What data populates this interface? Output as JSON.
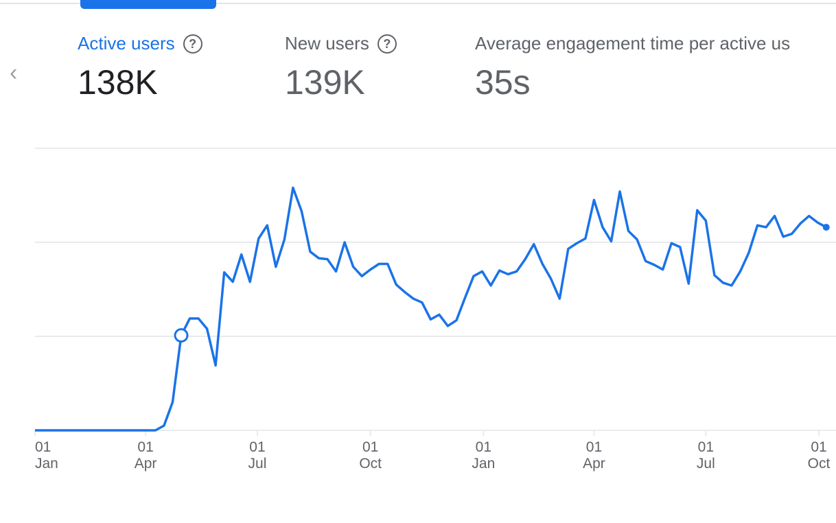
{
  "tabs": [
    {
      "label": "Active users",
      "value": "138K",
      "selected": true,
      "help_icon": "help-circle-icon"
    },
    {
      "label": "New users",
      "value": "139K",
      "selected": false,
      "help_icon": "help-circle-icon"
    },
    {
      "label": "Average engagement time per active us",
      "value": "35s",
      "selected": false
    }
  ],
  "nav": {
    "prev_icon": "chevron-left-icon"
  },
  "colors": {
    "accent": "#1a73e8",
    "line": "#1a73e8",
    "grid": "#e8eaed",
    "text_muted": "#5f6368"
  },
  "chart_data": {
    "type": "line",
    "title": "",
    "xlabel": "",
    "ylabel": "",
    "frequency": "weekly",
    "start": "01 Jan",
    "x_ticks": [
      {
        "day": "01",
        "month": "Jan"
      },
      {
        "day": "01",
        "month": "Apr"
      },
      {
        "day": "01",
        "month": "Jul"
      },
      {
        "day": "01",
        "month": "Oct"
      },
      {
        "day": "01",
        "month": "Jan"
      },
      {
        "day": "01",
        "month": "Apr"
      },
      {
        "day": "01",
        "month": "Jul"
      },
      {
        "day": "01",
        "month": "Oct"
      }
    ],
    "ylim": [
      0,
      300
    ],
    "y_gridlines": [
      0,
      100,
      200,
      300
    ],
    "y_tick_labels_shown": false,
    "grid": true,
    "highlighted_point_index": 17,
    "series": [
      {
        "values": [
          0,
          0,
          0,
          0,
          0,
          0,
          0,
          0,
          0,
          0,
          0,
          0,
          0,
          0,
          0,
          5,
          30,
          101,
          119,
          119,
          108,
          69,
          168,
          158,
          187,
          158,
          204,
          218,
          174,
          203,
          258,
          233,
          190,
          183,
          182,
          169,
          200,
          174,
          164,
          171,
          177,
          177,
          155,
          147,
          140,
          136,
          118,
          123,
          111,
          117,
          141,
          164,
          169,
          154,
          170,
          166,
          169,
          182,
          198,
          177,
          161,
          140,
          193,
          199,
          204,
          245,
          216,
          201,
          254,
          212,
          203,
          180,
          176,
          171,
          199,
          195,
          156,
          234,
          223,
          165,
          157,
          154,
          169,
          189,
          218,
          216,
          228,
          206,
          209,
          220,
          228,
          221,
          216
        ]
      }
    ]
  }
}
